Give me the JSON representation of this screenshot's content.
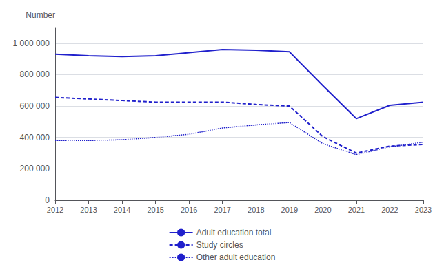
{
  "chart_data": {
    "type": "line",
    "ylabel": "Number",
    "x": [
      2012,
      2013,
      2014,
      2015,
      2016,
      2017,
      2018,
      2019,
      2020,
      2021,
      2022,
      2023
    ],
    "series": [
      {
        "name": "Adult education total",
        "color": "#2020cc",
        "line_style": "solid",
        "values": [
          930000,
          920000,
          915000,
          920000,
          940000,
          960000,
          955000,
          945000,
          730000,
          520000,
          605000,
          625000
        ]
      },
      {
        "name": "Study circles",
        "color": "#2020cc",
        "line_style": "dashed",
        "values": [
          655000,
          645000,
          635000,
          625000,
          625000,
          625000,
          610000,
          600000,
          405000,
          300000,
          345000,
          355000
        ]
      },
      {
        "name": "Other adult education",
        "color": "#2020cc",
        "line_style": "dotted",
        "values": [
          380000,
          380000,
          385000,
          400000,
          420000,
          460000,
          480000,
          495000,
          360000,
          290000,
          340000,
          370000
        ]
      }
    ],
    "xlim": [
      2012,
      2023
    ],
    "xticks": [
      2012,
      2013,
      2014,
      2015,
      2016,
      2017,
      2018,
      2019,
      2020,
      2021,
      2022,
      2023
    ],
    "ylim": [
      0,
      1100000
    ],
    "yticks": [
      0,
      {
        "value": 200000,
        "label": "200 000"
      },
      {
        "value": 400000,
        "label": "400 000"
      },
      {
        "value": 600000,
        "label": "600 000"
      },
      {
        "value": 800000,
        "label": "800 000"
      },
      {
        "value": 1000000,
        "label": "1 000 000"
      }
    ],
    "grid": true,
    "legend": "bottom"
  }
}
